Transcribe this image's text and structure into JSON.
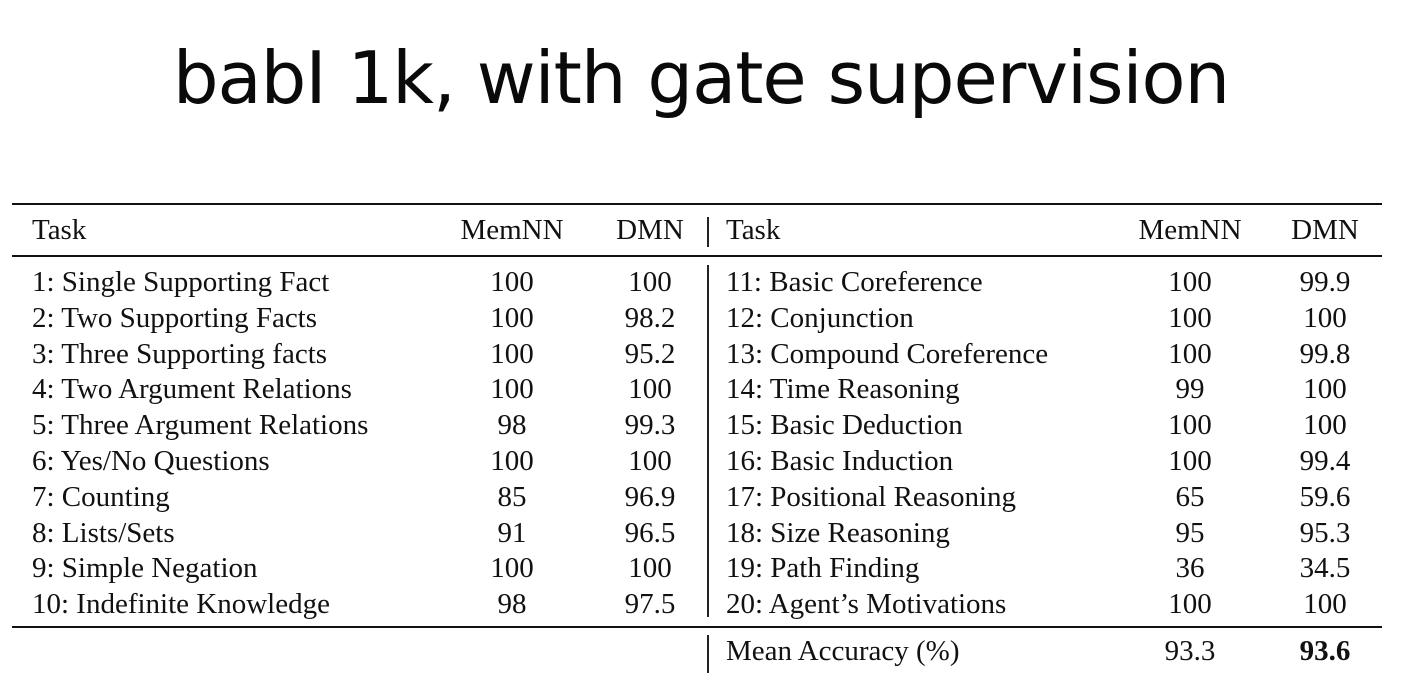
{
  "title": "babI 1k, with gate supervision",
  "table": {
    "headers": {
      "task": "Task",
      "memnn": "MemNN",
      "dmn": "DMN"
    },
    "left_rows": [
      {
        "task": "1: Single Supporting Fact",
        "memnn": "100",
        "dmn": "100"
      },
      {
        "task": "2: Two Supporting Facts",
        "memnn": "100",
        "dmn": "98.2"
      },
      {
        "task": "3: Three Supporting facts",
        "memnn": "100",
        "dmn": "95.2"
      },
      {
        "task": "4: Two Argument Relations",
        "memnn": "100",
        "dmn": "100"
      },
      {
        "task": "5: Three Argument Relations",
        "memnn": "98",
        "dmn": "99.3"
      },
      {
        "task": "6: Yes/No Questions",
        "memnn": "100",
        "dmn": "100"
      },
      {
        "task": "7: Counting",
        "memnn": "85",
        "dmn": "96.9"
      },
      {
        "task": "8: Lists/Sets",
        "memnn": "91",
        "dmn": "96.5"
      },
      {
        "task": "9: Simple Negation",
        "memnn": "100",
        "dmn": "100"
      },
      {
        "task": "10: Indefinite Knowledge",
        "memnn": "98",
        "dmn": "97.5"
      }
    ],
    "right_rows": [
      {
        "task": "11: Basic Coreference",
        "memnn": "100",
        "dmn": "99.9"
      },
      {
        "task": "12: Conjunction",
        "memnn": "100",
        "dmn": "100"
      },
      {
        "task": "13: Compound Coreference",
        "memnn": "100",
        "dmn": "99.8"
      },
      {
        "task": "14: Time Reasoning",
        "memnn": "99",
        "dmn": "100"
      },
      {
        "task": "15: Basic Deduction",
        "memnn": "100",
        "dmn": "100"
      },
      {
        "task": "16: Basic Induction",
        "memnn": "100",
        "dmn": "99.4"
      },
      {
        "task": "17: Positional Reasoning",
        "memnn": "65",
        "dmn": "59.6"
      },
      {
        "task": "18: Size Reasoning",
        "memnn": "95",
        "dmn": "95.3"
      },
      {
        "task": "19: Path Finding",
        "memnn": "36",
        "dmn": "34.5"
      },
      {
        "task": "20: Agent’s Motivations",
        "memnn": "100",
        "dmn": "100"
      }
    ],
    "footer": {
      "label": "Mean Accuracy (%)",
      "memnn": "93.3",
      "dmn": "93.6"
    }
  }
}
